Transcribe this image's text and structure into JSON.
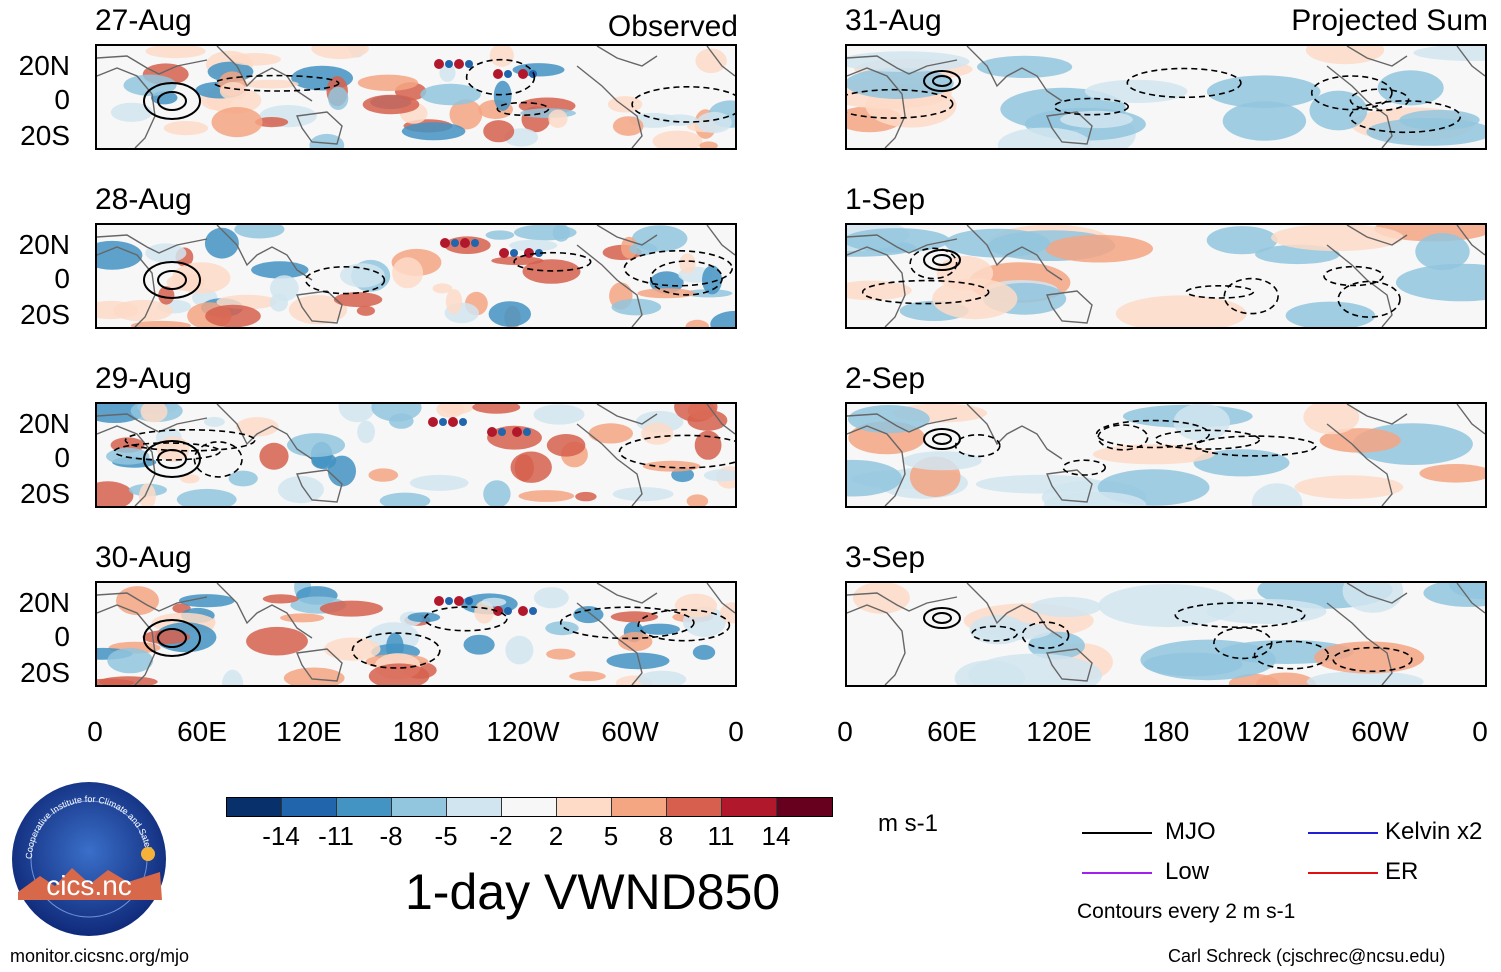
{
  "observed": {
    "title": "Observed",
    "dates": [
      "27-Aug",
      "28-Aug",
      "29-Aug",
      "30-Aug"
    ]
  },
  "projected": {
    "title": "Projected Sum",
    "dates": [
      "31-Aug",
      "1-Sep",
      "2-Sep",
      "3-Sep"
    ]
  },
  "lat_labels": [
    "20N",
    "0",
    "20S"
  ],
  "lon_labels": [
    "0",
    "60E",
    "120E",
    "180",
    "120W",
    "60W",
    "0"
  ],
  "colorbar": {
    "ticks": [
      "-14",
      "-11",
      "-8",
      "-5",
      "-2",
      "2",
      "5",
      "8",
      "11",
      "14"
    ],
    "colors": [
      "#08306b",
      "#2166ac",
      "#4393c3",
      "#92c5de",
      "#d1e5f0",
      "#f7f7f7",
      "#fddbc7",
      "#f4a582",
      "#d6604d",
      "#b2182b",
      "#67001f"
    ],
    "units": "m s-1"
  },
  "main_title": "1-day VWND850",
  "legend": {
    "items": [
      {
        "label": "MJO",
        "color": "#000000"
      },
      {
        "label": "Kelvin x2",
        "color": "#1f1fd6"
      },
      {
        "label": "Low",
        "color": "#a020f0"
      },
      {
        "label": "ER",
        "color": "#e01010"
      }
    ],
    "note": "Contours every 2 m s-1"
  },
  "logo_text": "cics.nc",
  "logo_ring_text": "Cooperative Institute for Climate and Satellites",
  "footer": {
    "left": "monitor.cicsnc.org/mjo",
    "right": "Carl Schreck (cjschrec@ncsu.edu)"
  }
}
